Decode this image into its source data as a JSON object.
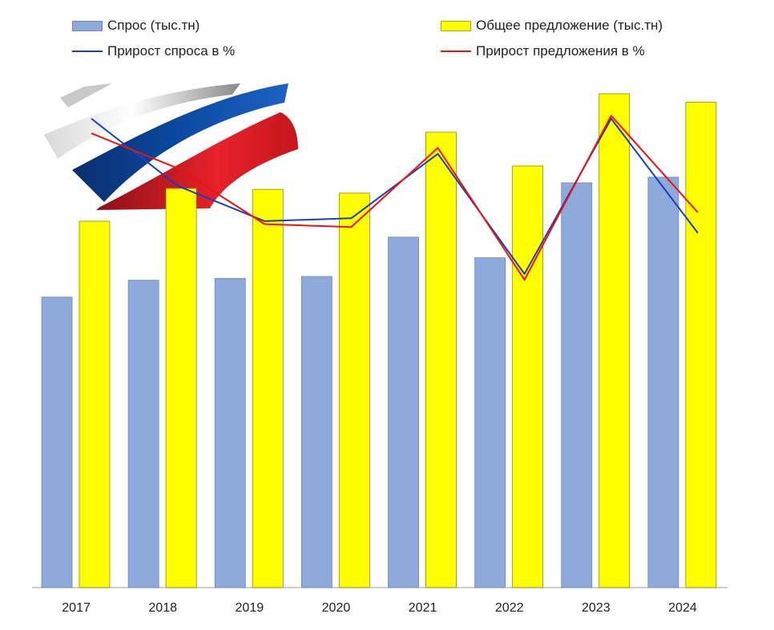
{
  "chart_data": {
    "type": "bar",
    "categories": [
      "2017",
      "2018",
      "2019",
      "2020",
      "2021",
      "2022",
      "2023",
      "2024"
    ],
    "series": [
      {
        "name": "Спрос (тыс.тн)",
        "kind": "bar",
        "color": "#8eaadb",
        "values": [
          31,
          32.8,
          33,
          33.2,
          37.4,
          35.2,
          43.2,
          43.8
        ]
      },
      {
        "name": "Общее предложение (тыс.тн)",
        "kind": "bar",
        "color": "#ffff00",
        "values": [
          39.1,
          42.6,
          42.5,
          42.1,
          48.6,
          45,
          52.7,
          51.8
        ]
      },
      {
        "name": "Прирост спроса в %",
        "kind": "line",
        "color": "#1a3fbf",
        "values": [
          8.5,
          6.2,
          5,
          5.1,
          7.3,
          3.2,
          8.5,
          4.6
        ]
      },
      {
        "name": "Прирост предложения в %",
        "kind": "line",
        "color": "#ee1111",
        "values": [
          8,
          6.8,
          4.9,
          4.8,
          7.5,
          3,
          8.6,
          5.3
        ]
      }
    ],
    "bar_ylim": [
      0,
      61
    ],
    "line_ylim": [
      -7.5,
      12
    ],
    "legend_position": "top",
    "grid": false
  },
  "legend": {
    "demand_label": "Спрос (тыс.тн)",
    "supply_label": "Общее предложение (тыс.тн)",
    "demand_growth_label": "Прирост спроса в %",
    "supply_growth_label": "Прирост предложения в %"
  }
}
